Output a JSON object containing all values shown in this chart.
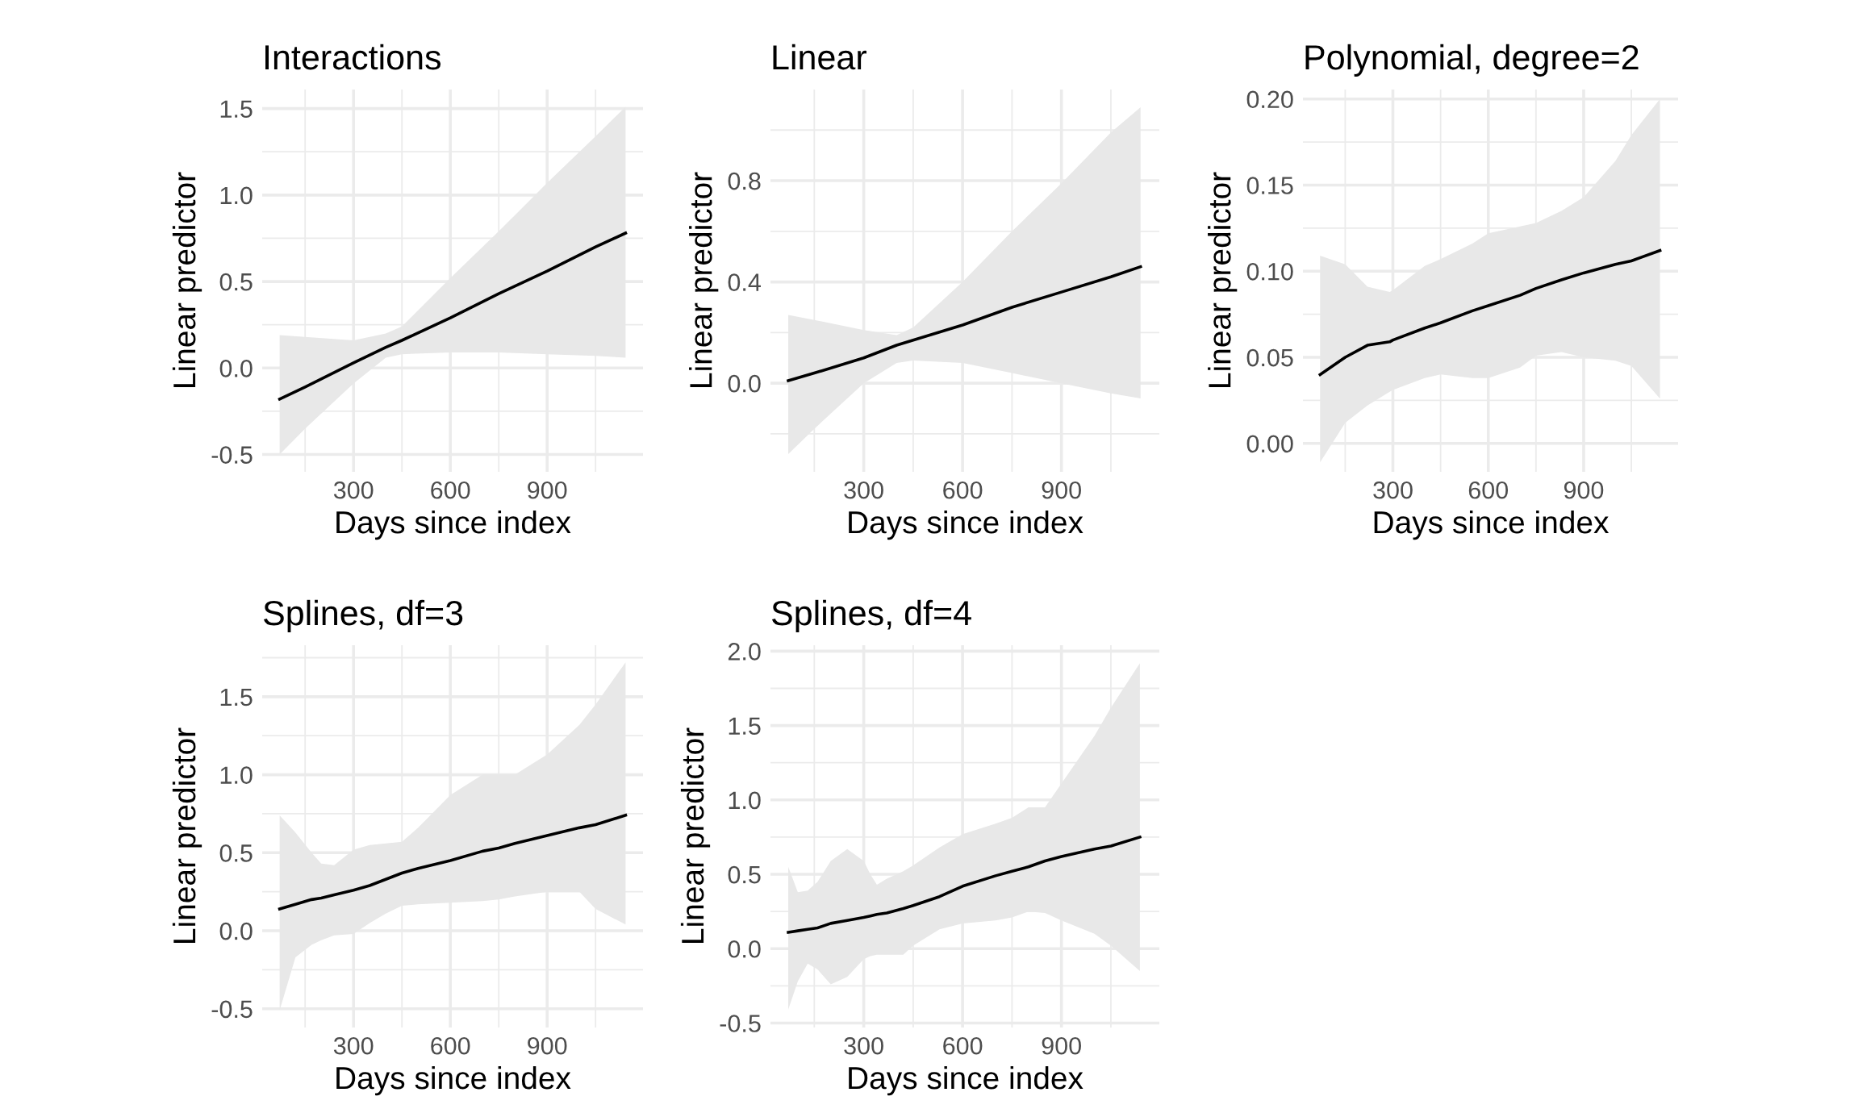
{
  "chart_data": [
    {
      "type": "line",
      "title": "Interactions",
      "xlabel": "Days since index",
      "ylabel": "Linear predictor",
      "xlim": [
        17,
        1197
      ],
      "xticks": [
        300,
        600,
        900
      ],
      "ylim": [
        -0.6,
        1.61
      ],
      "yticks": [
        {
          "value": -0.5,
          "label": "-0.5"
        },
        {
          "value": 0,
          "label": "0.0"
        },
        0.5,
        {
          "value": 1,
          "label": "1.0"
        },
        1.5
      ],
      "grid": true,
      "series": [
        {
          "color": "#000000",
          "x": [
            71,
            150,
            300,
            400,
            450,
            600,
            750,
            900,
            1050,
            1143
          ],
          "values": [
            -0.18,
            -0.11,
            0.03,
            0.12,
            0.16,
            0.29,
            0.43,
            0.56,
            0.7,
            0.78
          ],
          "lower": [
            -0.5,
            -0.35,
            -0.09,
            0.06,
            0.08,
            0.09,
            0.09,
            0.08,
            0.07,
            0.06
          ],
          "upper": [
            0.19,
            0.18,
            0.16,
            0.2,
            0.24,
            0.52,
            0.79,
            1.07,
            1.34,
            1.51
          ]
        }
      ]
    },
    {
      "type": "line",
      "title": "Linear",
      "xlabel": "Days since index",
      "ylabel": "Linear predictor",
      "xlim": [
        17,
        1197
      ],
      "xticks": [
        300,
        600,
        900
      ],
      "ylim": [
        -0.35,
        1.16
      ],
      "yticks": [
        {
          "value": 0,
          "label": "0.0"
        },
        0.4,
        0.8
      ],
      "grid": true,
      "series": [
        {
          "color": "#000000",
          "x": [
            71,
            150,
            300,
            400,
            450,
            600,
            750,
            900,
            1050,
            1140
          ],
          "values": [
            0.01,
            0.04,
            0.1,
            0.15,
            0.17,
            0.23,
            0.3,
            0.36,
            0.42,
            0.46
          ],
          "lower": [
            -0.28,
            -0.18,
            0.0,
            0.08,
            0.09,
            0.08,
            0.04,
            0.0,
            -0.04,
            -0.06
          ],
          "upper": [
            0.27,
            0.25,
            0.21,
            0.19,
            0.22,
            0.4,
            0.6,
            0.79,
            0.99,
            1.09
          ]
        }
      ]
    },
    {
      "type": "line",
      "title": "Polynomial, degree=2",
      "xlabel": "Days since index",
      "ylabel": "Linear predictor",
      "xlim": [
        17,
        1197
      ],
      "xticks": [
        300,
        600,
        900
      ],
      "ylim": [
        -0.0165,
        0.2055
      ],
      "yticks": [
        {
          "value": 0,
          "label": "0.00"
        },
        0.05,
        {
          "value": 0.1,
          "label": "0.10"
        },
        0.15,
        {
          "value": 0.2,
          "label": "0.20"
        }
      ],
      "grid": true,
      "series": [
        {
          "color": "#000000",
          "x": [
            71,
            150,
            220,
            290,
            300,
            400,
            450,
            550,
            600,
            700,
            750,
            830,
            900,
            1000,
            1050,
            1140
          ],
          "values": [
            0.04,
            0.05,
            0.057,
            0.059,
            0.06,
            0.067,
            0.07,
            0.077,
            0.08,
            0.086,
            0.09,
            0.095,
            0.099,
            0.104,
            0.106,
            0.112
          ],
          "lower": [
            -0.011,
            0.012,
            0.022,
            0.03,
            0.031,
            0.038,
            0.04,
            0.038,
            0.038,
            0.044,
            0.051,
            0.053,
            0.05,
            0.048,
            0.045,
            0.026
          ],
          "upper": [
            0.109,
            0.104,
            0.091,
            0.088,
            0.089,
            0.103,
            0.107,
            0.116,
            0.122,
            0.126,
            0.128,
            0.135,
            0.143,
            0.164,
            0.179,
            0.2
          ]
        }
      ]
    },
    {
      "type": "line",
      "title": "Splines, df=3",
      "xlabel": "Days since index",
      "ylabel": "Linear predictor",
      "xlim": [
        17,
        1197
      ],
      "xticks": [
        300,
        600,
        900
      ],
      "ylim": [
        -0.62,
        1.83
      ],
      "yticks": [
        {
          "value": -0.5,
          "label": "-0.5"
        },
        {
          "value": 0,
          "label": "0.0"
        },
        0.5,
        {
          "value": 1,
          "label": "1.0"
        },
        1.5
      ],
      "grid": true,
      "series": [
        {
          "color": "#000000",
          "x": [
            71,
            120,
            170,
            200,
            240,
            300,
            350,
            400,
            450,
            500,
            600,
            700,
            750,
            800,
            900,
            1000,
            1050,
            1143
          ],
          "values": [
            0.14,
            0.17,
            0.2,
            0.21,
            0.23,
            0.26,
            0.29,
            0.33,
            0.37,
            0.4,
            0.45,
            0.51,
            0.53,
            0.56,
            0.61,
            0.66,
            0.68,
            0.74
          ],
          "lower": [
            -0.51,
            -0.17,
            -0.09,
            -0.06,
            -0.03,
            -0.02,
            0.05,
            0.11,
            0.16,
            0.17,
            0.18,
            0.19,
            0.2,
            0.22,
            0.25,
            0.25,
            0.14,
            0.04
          ],
          "upper": [
            0.74,
            0.63,
            0.5,
            0.43,
            0.42,
            0.52,
            0.55,
            0.56,
            0.57,
            0.66,
            0.87,
            1.0,
            1.0,
            1.0,
            1.13,
            1.32,
            1.45,
            1.72
          ]
        }
      ]
    },
    {
      "type": "line",
      "title": "Splines, df=4",
      "xlabel": "Days since index",
      "ylabel": "Linear predictor",
      "xlim": [
        17,
        1197
      ],
      "xticks": [
        300,
        600,
        900
      ],
      "ylim": [
        -0.53,
        2.04
      ],
      "yticks": [
        {
          "value": -0.5,
          "label": "-0.5"
        },
        {
          "value": 0,
          "label": "0.0"
        },
        0.5,
        {
          "value": 1,
          "label": "1.0"
        },
        1.5,
        {
          "value": 2,
          "label": "2.0"
        }
      ],
      "grid": true,
      "series": [
        {
          "color": "#000000",
          "x": [
            71,
            100,
            130,
            160,
            200,
            250,
            300,
            320,
            340,
            370,
            420,
            450,
            530,
            600,
            700,
            750,
            800,
            850,
            900,
            1000,
            1050,
            1138
          ],
          "values": [
            0.11,
            0.12,
            0.13,
            0.14,
            0.17,
            0.19,
            0.21,
            0.22,
            0.23,
            0.24,
            0.27,
            0.29,
            0.35,
            0.42,
            0.49,
            0.52,
            0.55,
            0.59,
            0.62,
            0.67,
            0.69,
            0.75
          ],
          "lower": [
            -0.41,
            -0.22,
            -0.1,
            -0.14,
            -0.24,
            -0.19,
            -0.07,
            -0.05,
            -0.04,
            -0.04,
            -0.04,
            0.02,
            0.13,
            0.17,
            0.19,
            0.21,
            0.25,
            0.24,
            0.19,
            0.1,
            0.02,
            -0.15
          ],
          "upper": [
            0.55,
            0.38,
            0.39,
            0.45,
            0.59,
            0.67,
            0.59,
            0.5,
            0.43,
            0.47,
            0.52,
            0.56,
            0.68,
            0.77,
            0.84,
            0.88,
            0.95,
            0.95,
            1.11,
            1.43,
            1.62,
            1.92
          ]
        }
      ]
    }
  ]
}
